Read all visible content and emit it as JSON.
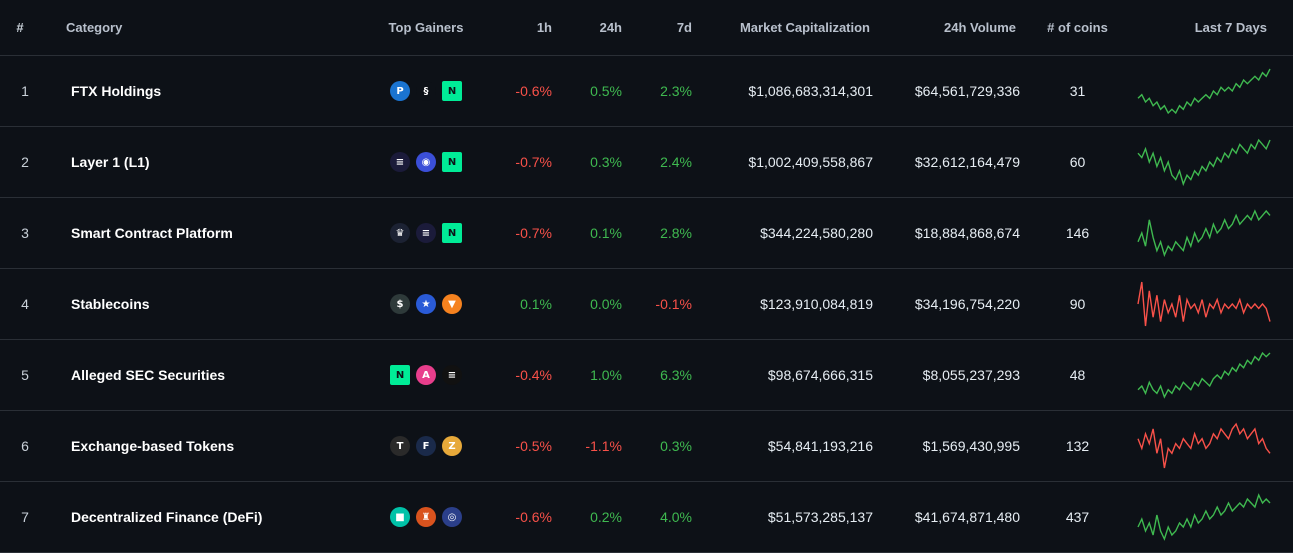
{
  "header": {
    "rank": "#",
    "category": "Category",
    "top_gainers": "Top Gainers",
    "h1": "1h",
    "h24": "24h",
    "d7": "7d",
    "market_cap": "Market Capitalization",
    "volume": "24h Volume",
    "coins": "# of coins",
    "last7": "Last 7 Days"
  },
  "colors": {
    "up": "#3fb950",
    "down": "#f85149",
    "background": "#0d1117"
  },
  "rows": [
    {
      "rank": "1",
      "category": "FTX Holdings",
      "h1": "-0.6%",
      "h24": "0.5%",
      "d7": "2.3%",
      "market_cap": "$1,086,683,314,301",
      "volume": "$64,561,729,336",
      "coins": "31",
      "icons": [
        {
          "name": "p-token-icon",
          "glyph": "P",
          "bg": "#1a74d1"
        },
        {
          "name": "chain-link-icon",
          "glyph": "§",
          "bg": "#0d1117"
        },
        {
          "name": "near-icon",
          "glyph": "N",
          "bg": "#00ec97"
        }
      ],
      "trend": "up",
      "spark": [
        6,
        7,
        5,
        6,
        4,
        5,
        3,
        4,
        2,
        3,
        2,
        4,
        3,
        5,
        4,
        6,
        5,
        6,
        7,
        6,
        8,
        7,
        9,
        8,
        9,
        8,
        10,
        9,
        11,
        10,
        11,
        12,
        11,
        13,
        12,
        14
      ]
    },
    {
      "rank": "2",
      "category": "Layer 1 (L1)",
      "h1": "-0.7%",
      "h24": "0.3%",
      "d7": "2.4%",
      "market_cap": "$1,002,409,558,867",
      "volume": "$32,612,164,479",
      "coins": "60",
      "icons": [
        {
          "name": "layer-token-icon",
          "glyph": "≡",
          "bg": "#1b1b3a"
        },
        {
          "name": "badge-token-icon",
          "glyph": "◉",
          "bg": "#3b4fd8"
        },
        {
          "name": "near-icon",
          "glyph": "N",
          "bg": "#00ec97"
        }
      ],
      "trend": "up",
      "spark": [
        11,
        10,
        12,
        9,
        11,
        8,
        10,
        7,
        9,
        6,
        5,
        7,
        4,
        6,
        5,
        7,
        6,
        8,
        7,
        9,
        8,
        10,
        9,
        11,
        10,
        12,
        11,
        13,
        12,
        11,
        13,
        12,
        14,
        13,
        12,
        14
      ]
    },
    {
      "rank": "3",
      "category": "Smart Contract Platform",
      "h1": "-0.7%",
      "h24": "0.1%",
      "d7": "2.8%",
      "market_cap": "$344,224,580,280",
      "volume": "$18,884,868,674",
      "coins": "146",
      "icons": [
        {
          "name": "crown-token-icon",
          "glyph": "♛",
          "bg": "#1c2233"
        },
        {
          "name": "layer-token-icon",
          "glyph": "≡",
          "bg": "#1b1b3a"
        },
        {
          "name": "near-icon",
          "glyph": "N",
          "bg": "#00ec97"
        }
      ],
      "trend": "up",
      "spark": [
        7,
        9,
        6,
        12,
        8,
        5,
        7,
        4,
        6,
        5,
        7,
        6,
        5,
        8,
        6,
        9,
        7,
        8,
        10,
        8,
        11,
        9,
        10,
        12,
        10,
        11,
        13,
        11,
        12,
        13,
        12,
        14,
        12,
        13,
        14,
        13
      ]
    },
    {
      "rank": "4",
      "category": "Stablecoins",
      "h1": "0.1%",
      "h24": "0.0%",
      "d7": "-0.1%",
      "market_cap": "$123,910,084,819",
      "volume": "$34,196,754,220",
      "coins": "90",
      "icons": [
        {
          "name": "stable-token-icon",
          "glyph": "$",
          "bg": "#2e3a3a"
        },
        {
          "name": "usd-flag-token-icon",
          "glyph": "★",
          "bg": "#2a5bd7"
        },
        {
          "name": "shield-token-icon",
          "glyph": "▼",
          "bg": "#f5821f"
        }
      ],
      "trend": "down",
      "spark": [
        9,
        14,
        4,
        12,
        6,
        11,
        5,
        10,
        7,
        9,
        6,
        11,
        5,
        10,
        8,
        9,
        7,
        10,
        6,
        9,
        8,
        10,
        7,
        9,
        8,
        9,
        8,
        10,
        7,
        9,
        8,
        9,
        8,
        9,
        8,
        5
      ]
    },
    {
      "rank": "5",
      "category": "Alleged SEC Securities",
      "h1": "-0.4%",
      "h24": "1.0%",
      "d7": "6.3%",
      "market_cap": "$98,674,666,315",
      "volume": "$8,055,237,293",
      "coins": "48",
      "icons": [
        {
          "name": "near-icon",
          "glyph": "N",
          "bg": "#00ec97"
        },
        {
          "name": "anchor-token-icon",
          "glyph": "A",
          "bg": "#e83e8c"
        },
        {
          "name": "solana-icon",
          "glyph": "≡",
          "bg": "#111111"
        }
      ],
      "trend": "up",
      "spark": [
        4,
        5,
        3,
        6,
        4,
        3,
        5,
        2,
        4,
        3,
        5,
        4,
        6,
        5,
        4,
        6,
        5,
        7,
        6,
        5,
        7,
        8,
        7,
        9,
        8,
        10,
        9,
        11,
        10,
        12,
        11,
        13,
        12,
        14,
        13,
        14
      ]
    },
    {
      "rank": "6",
      "category": "Exchange-based Tokens",
      "h1": "-0.5%",
      "h24": "-1.1%",
      "d7": "0.3%",
      "market_cap": "$54,841,193,216",
      "volume": "$1,569,430,995",
      "coins": "132",
      "icons": [
        {
          "name": "tdk-token-icon",
          "glyph": "T",
          "bg": "#2a2a2a"
        },
        {
          "name": "fj-token-icon",
          "glyph": "F",
          "bg": "#1a2a4a"
        },
        {
          "name": "z-token-icon",
          "glyph": "Z",
          "bg": "#e7a93a"
        }
      ],
      "trend": "down",
      "spark": [
        10,
        8,
        11,
        9,
        12,
        7,
        10,
        4,
        8,
        7,
        9,
        8,
        10,
        9,
        8,
        11,
        9,
        10,
        8,
        9,
        11,
        10,
        12,
        11,
        10,
        12,
        13,
        11,
        12,
        10,
        11,
        12,
        9,
        10,
        8,
        7
      ]
    },
    {
      "rank": "7",
      "category": "Decentralized Finance (DeFi)",
      "h1": "-0.6%",
      "h24": "0.2%",
      "d7": "4.0%",
      "market_cap": "$51,573,285,137",
      "volume": "$41,674,871,480",
      "coins": "437",
      "icons": [
        {
          "name": "cube-token-icon",
          "glyph": "■",
          "bg": "#00c2a8"
        },
        {
          "name": "robot-token-icon",
          "glyph": "♜",
          "bg": "#d9531e"
        },
        {
          "name": "globe-token-icon",
          "glyph": "◎",
          "bg": "#2b3f8a"
        }
      ],
      "trend": "up",
      "spark": [
        6,
        8,
        5,
        7,
        4,
        9,
        5,
        3,
        6,
        4,
        5,
        7,
        6,
        8,
        6,
        9,
        7,
        8,
        10,
        8,
        9,
        11,
        9,
        10,
        12,
        10,
        11,
        12,
        11,
        13,
        12,
        11,
        14,
        12,
        13,
        12
      ]
    }
  ]
}
